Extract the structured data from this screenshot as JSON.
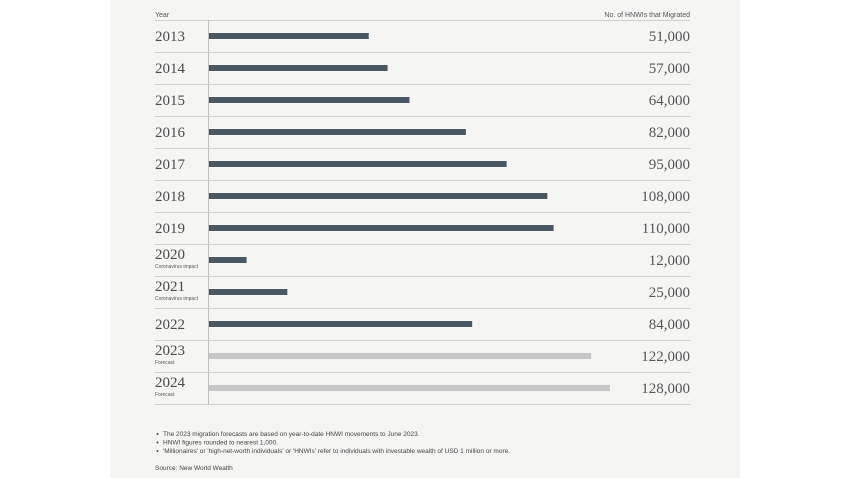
{
  "chart_data": {
    "type": "bar",
    "orientation": "horizontal",
    "category_header": "Year",
    "value_header": "No. of HNWIs that Migrated",
    "categories": [
      "2013",
      "2014",
      "2015",
      "2016",
      "2017",
      "2018",
      "2019",
      "2020",
      "2021",
      "2022",
      "2023",
      "2024"
    ],
    "annotations": [
      null,
      null,
      null,
      null,
      null,
      null,
      null,
      "Coronavirus impact",
      "Coronavirus impact",
      null,
      "Forecast",
      "Forecast"
    ],
    "values": [
      51000,
      57000,
      64000,
      82000,
      95000,
      108000,
      110000,
      12000,
      25000,
      84000,
      122000,
      128000
    ],
    "value_labels": [
      "51,000",
      "57,000",
      "64,000",
      "82,000",
      "95,000",
      "108,000",
      "110,000",
      "12,000",
      "25,000",
      "84,000",
      "122,000",
      "128,000"
    ],
    "colors": [
      "#4a5863",
      "#4a5863",
      "#4a5863",
      "#4a5863",
      "#4a5863",
      "#4a5863",
      "#4a5863",
      "#4a5863",
      "#4a5863",
      "#4a5863",
      "#c6c6c6",
      "#c6c6c6"
    ],
    "notes": [
      "The 2023 migration forecasts are based on year-to-date HNWI movements to June 2023.",
      "HNWI figures rounded to nearest 1,000.",
      "'Millionaires' or 'high-net-worth individuals' or 'HNWIs' refer to individuals with investable wealth of USD 1 million or more."
    ],
    "source": "Source: New World Wealth"
  }
}
